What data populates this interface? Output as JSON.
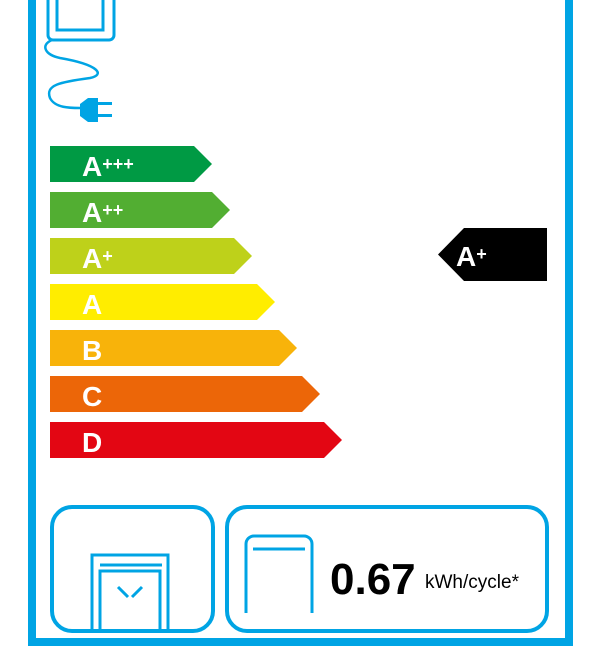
{
  "scale": [
    {
      "letter": "A",
      "plus": "+++",
      "color": "#009a44"
    },
    {
      "letter": "A",
      "plus": "++",
      "color": "#52ae32"
    },
    {
      "letter": "A",
      "plus": "+",
      "color": "#bed11a"
    },
    {
      "letter": "A",
      "plus": "",
      "color": "#ffed00"
    },
    {
      "letter": "B",
      "plus": "",
      "color": "#f8b30a"
    },
    {
      "letter": "C",
      "plus": "",
      "color": "#ec6608"
    },
    {
      "letter": "D",
      "plus": "",
      "color": "#e30613"
    }
  ],
  "rating": {
    "letter": "A",
    "plus": "+"
  },
  "consumption": {
    "value": "0.67",
    "unit": "kWh/cycle*"
  },
  "icons": [
    "appliance-plug-icon",
    "oven-icon",
    "oven-front-icon"
  ],
  "accent": "#00a4e4"
}
